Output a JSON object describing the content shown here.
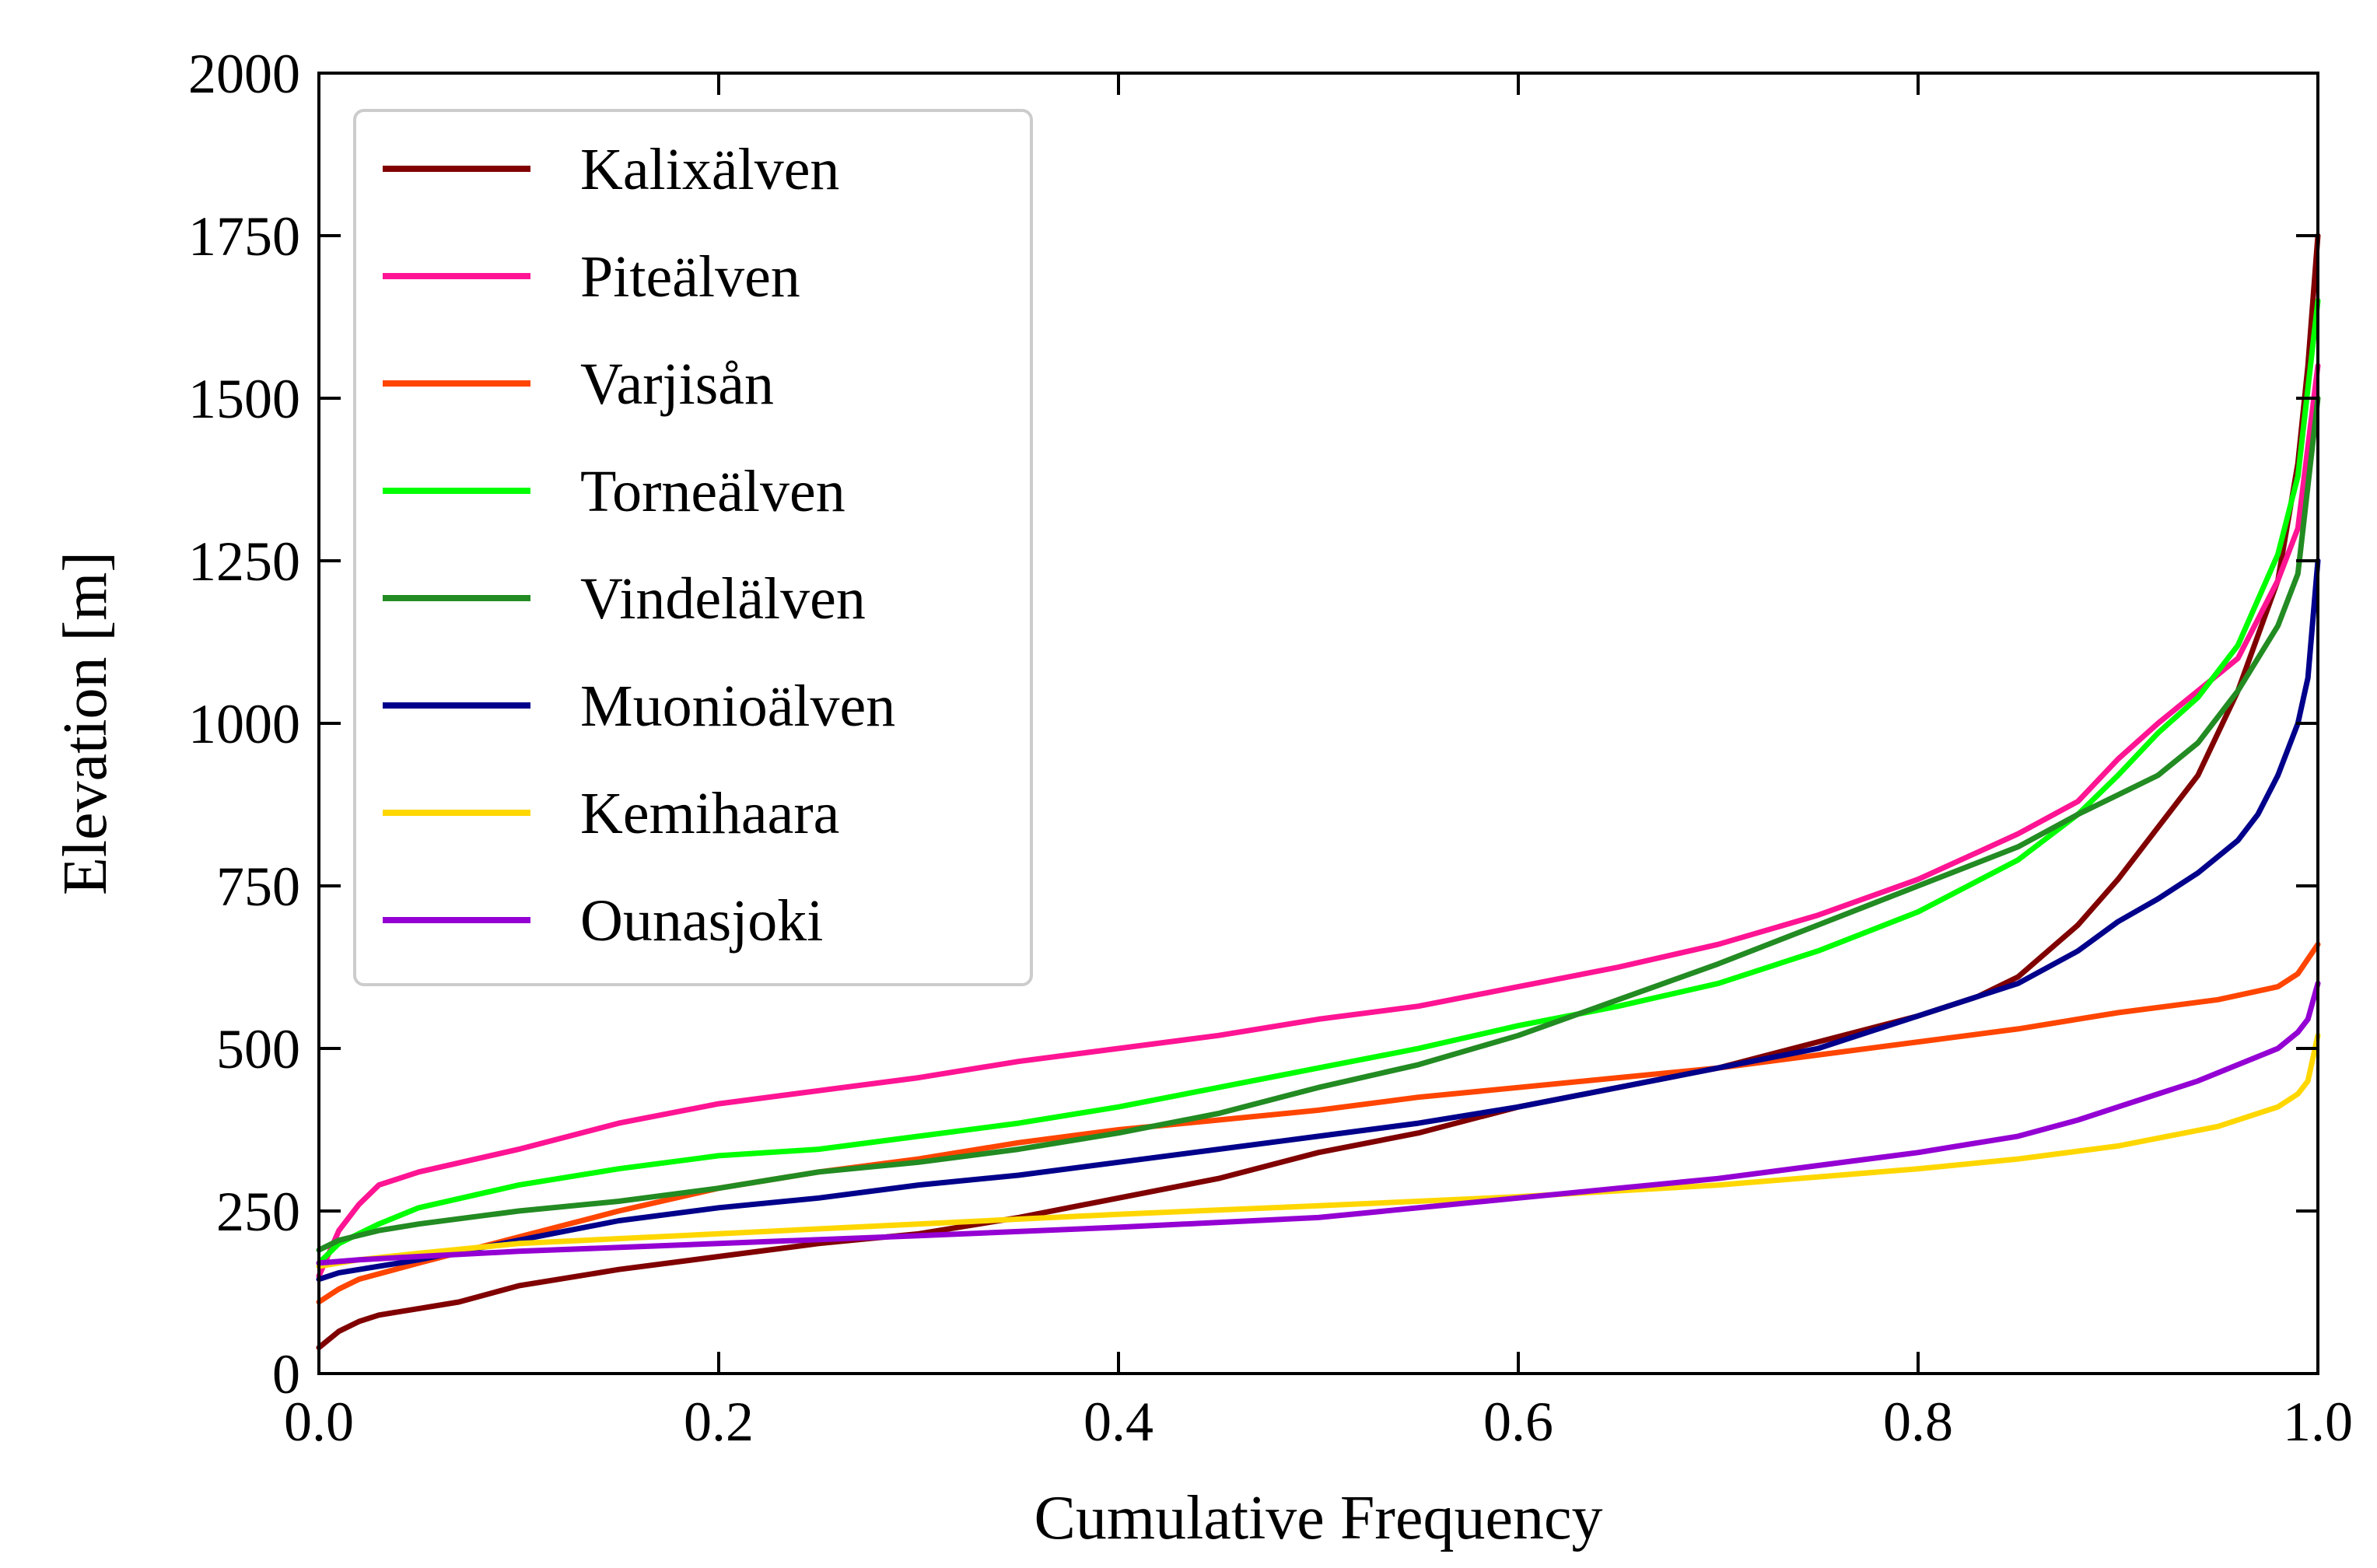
{
  "chart_data": {
    "type": "line",
    "title": "",
    "xlabel": "Cumulative Frequency",
    "ylabel": "Elevation [m]",
    "xlim": [
      0.0,
      1.0
    ],
    "ylim": [
      0,
      2000
    ],
    "grid": false,
    "legend_position": "top-left",
    "x_ticks": [
      0.0,
      0.2,
      0.4,
      0.6,
      0.8,
      1.0
    ],
    "x_tick_labels": [
      "0.0",
      "0.2",
      "0.4",
      "0.6",
      "0.8",
      "1.0"
    ],
    "y_ticks": [
      0,
      250,
      500,
      750,
      1000,
      1250,
      1500,
      1750,
      2000
    ],
    "y_tick_labels": [
      "0",
      "250",
      "500",
      "750",
      "1000",
      "1250",
      "1500",
      "1750",
      "2000"
    ],
    "series": [
      {
        "name": "Kalixälven",
        "color": "#800000",
        "points": [
          [
            0,
            40
          ],
          [
            0.01,
            65
          ],
          [
            0.02,
            80
          ],
          [
            0.03,
            90
          ],
          [
            0.05,
            100
          ],
          [
            0.07,
            110
          ],
          [
            0.1,
            135
          ],
          [
            0.15,
            160
          ],
          [
            0.2,
            180
          ],
          [
            0.25,
            200
          ],
          [
            0.3,
            215
          ],
          [
            0.35,
            240
          ],
          [
            0.4,
            270
          ],
          [
            0.45,
            300
          ],
          [
            0.5,
            340
          ],
          [
            0.55,
            370
          ],
          [
            0.6,
            410
          ],
          [
            0.65,
            440
          ],
          [
            0.7,
            470
          ],
          [
            0.75,
            510
          ],
          [
            0.8,
            550
          ],
          [
            0.83,
            580
          ],
          [
            0.85,
            610
          ],
          [
            0.88,
            690
          ],
          [
            0.9,
            760
          ],
          [
            0.92,
            840
          ],
          [
            0.94,
            920
          ],
          [
            0.96,
            1050
          ],
          [
            0.98,
            1220
          ],
          [
            0.99,
            1400
          ],
          [
            0.995,
            1550
          ],
          [
            1.0,
            1750
          ]
        ]
      },
      {
        "name": "Piteälven",
        "color": "#ff1493",
        "points": [
          [
            0,
            150
          ],
          [
            0.01,
            220
          ],
          [
            0.02,
            260
          ],
          [
            0.03,
            290
          ],
          [
            0.05,
            310
          ],
          [
            0.1,
            345
          ],
          [
            0.15,
            385
          ],
          [
            0.2,
            415
          ],
          [
            0.25,
            435
          ],
          [
            0.3,
            455
          ],
          [
            0.35,
            480
          ],
          [
            0.4,
            500
          ],
          [
            0.45,
            520
          ],
          [
            0.5,
            545
          ],
          [
            0.55,
            565
          ],
          [
            0.6,
            595
          ],
          [
            0.65,
            625
          ],
          [
            0.7,
            660
          ],
          [
            0.75,
            705
          ],
          [
            0.8,
            760
          ],
          [
            0.85,
            830
          ],
          [
            0.88,
            880
          ],
          [
            0.9,
            945
          ],
          [
            0.92,
            1000
          ],
          [
            0.94,
            1050
          ],
          [
            0.96,
            1100
          ],
          [
            0.98,
            1220
          ],
          [
            0.99,
            1300
          ],
          [
            1.0,
            1550
          ]
        ]
      },
      {
        "name": "Varjisån",
        "color": "#ff4500",
        "points": [
          [
            0,
            110
          ],
          [
            0.01,
            130
          ],
          [
            0.02,
            145
          ],
          [
            0.05,
            170
          ],
          [
            0.1,
            210
          ],
          [
            0.15,
            250
          ],
          [
            0.2,
            285
          ],
          [
            0.25,
            310
          ],
          [
            0.3,
            330
          ],
          [
            0.35,
            355
          ],
          [
            0.4,
            375
          ],
          [
            0.45,
            390
          ],
          [
            0.5,
            405
          ],
          [
            0.55,
            425
          ],
          [
            0.6,
            440
          ],
          [
            0.65,
            455
          ],
          [
            0.7,
            470
          ],
          [
            0.75,
            490
          ],
          [
            0.8,
            510
          ],
          [
            0.85,
            530
          ],
          [
            0.9,
            555
          ],
          [
            0.95,
            575
          ],
          [
            0.98,
            595
          ],
          [
            0.99,
            615
          ],
          [
            1.0,
            660
          ]
        ]
      },
      {
        "name": "Torneälven",
        "color": "#00ff00",
        "points": [
          [
            0,
            170
          ],
          [
            0.01,
            200
          ],
          [
            0.03,
            230
          ],
          [
            0.05,
            255
          ],
          [
            0.1,
            290
          ],
          [
            0.15,
            315
          ],
          [
            0.2,
            335
          ],
          [
            0.25,
            345
          ],
          [
            0.3,
            365
          ],
          [
            0.35,
            385
          ],
          [
            0.4,
            410
          ],
          [
            0.45,
            440
          ],
          [
            0.5,
            470
          ],
          [
            0.55,
            500
          ],
          [
            0.6,
            535
          ],
          [
            0.65,
            565
          ],
          [
            0.7,
            600
          ],
          [
            0.75,
            650
          ],
          [
            0.8,
            710
          ],
          [
            0.85,
            790
          ],
          [
            0.88,
            860
          ],
          [
            0.9,
            920
          ],
          [
            0.92,
            985
          ],
          [
            0.94,
            1040
          ],
          [
            0.96,
            1120
          ],
          [
            0.98,
            1260
          ],
          [
            0.99,
            1380
          ],
          [
            1.0,
            1650
          ]
        ]
      },
      {
        "name": "Vindelälven",
        "color": "#228b22",
        "points": [
          [
            0,
            190
          ],
          [
            0.01,
            205
          ],
          [
            0.03,
            220
          ],
          [
            0.05,
            230
          ],
          [
            0.1,
            250
          ],
          [
            0.15,
            265
          ],
          [
            0.2,
            285
          ],
          [
            0.25,
            310
          ],
          [
            0.3,
            325
          ],
          [
            0.35,
            345
          ],
          [
            0.4,
            370
          ],
          [
            0.45,
            400
          ],
          [
            0.5,
            440
          ],
          [
            0.55,
            475
          ],
          [
            0.6,
            520
          ],
          [
            0.65,
            575
          ],
          [
            0.7,
            630
          ],
          [
            0.75,
            690
          ],
          [
            0.8,
            750
          ],
          [
            0.85,
            810
          ],
          [
            0.88,
            860
          ],
          [
            0.9,
            890
          ],
          [
            0.92,
            920
          ],
          [
            0.94,
            970
          ],
          [
            0.96,
            1050
          ],
          [
            0.98,
            1150
          ],
          [
            0.99,
            1230
          ],
          [
            1.0,
            1500
          ]
        ]
      },
      {
        "name": "Muonioälven",
        "color": "#00008b",
        "points": [
          [
            0,
            145
          ],
          [
            0.01,
            155
          ],
          [
            0.03,
            165
          ],
          [
            0.05,
            175
          ],
          [
            0.1,
            205
          ],
          [
            0.15,
            235
          ],
          [
            0.2,
            255
          ],
          [
            0.25,
            270
          ],
          [
            0.3,
            290
          ],
          [
            0.35,
            305
          ],
          [
            0.4,
            325
          ],
          [
            0.45,
            345
          ],
          [
            0.5,
            365
          ],
          [
            0.55,
            385
          ],
          [
            0.6,
            410
          ],
          [
            0.65,
            440
          ],
          [
            0.7,
            470
          ],
          [
            0.75,
            500
          ],
          [
            0.8,
            550
          ],
          [
            0.85,
            600
          ],
          [
            0.88,
            650
          ],
          [
            0.9,
            695
          ],
          [
            0.92,
            730
          ],
          [
            0.94,
            770
          ],
          [
            0.96,
            820
          ],
          [
            0.97,
            860
          ],
          [
            0.98,
            920
          ],
          [
            0.99,
            1000
          ],
          [
            0.995,
            1070
          ],
          [
            1.0,
            1250
          ]
        ]
      },
      {
        "name": "Kemihaara",
        "color": "#ffd700",
        "points": [
          [
            0,
            165
          ],
          [
            0.02,
            175
          ],
          [
            0.05,
            185
          ],
          [
            0.1,
            200
          ],
          [
            0.2,
            215
          ],
          [
            0.3,
            230
          ],
          [
            0.4,
            245
          ],
          [
            0.5,
            258
          ],
          [
            0.6,
            272
          ],
          [
            0.7,
            290
          ],
          [
            0.8,
            315
          ],
          [
            0.85,
            330
          ],
          [
            0.9,
            350
          ],
          [
            0.95,
            380
          ],
          [
            0.98,
            410
          ],
          [
            0.99,
            430
          ],
          [
            0.995,
            450
          ],
          [
            1.0,
            520
          ]
        ]
      },
      {
        "name": "Ounasjoki",
        "color": "#9400d3",
        "points": [
          [
            0,
            170
          ],
          [
            0.02,
            175
          ],
          [
            0.05,
            180
          ],
          [
            0.1,
            188
          ],
          [
            0.2,
            200
          ],
          [
            0.3,
            212
          ],
          [
            0.4,
            225
          ],
          [
            0.5,
            240
          ],
          [
            0.6,
            270
          ],
          [
            0.65,
            285
          ],
          [
            0.7,
            300
          ],
          [
            0.75,
            320
          ],
          [
            0.8,
            340
          ],
          [
            0.85,
            365
          ],
          [
            0.88,
            390
          ],
          [
            0.9,
            410
          ],
          [
            0.92,
            430
          ],
          [
            0.94,
            450
          ],
          [
            0.96,
            475
          ],
          [
            0.98,
            500
          ],
          [
            0.99,
            525
          ],
          [
            0.995,
            545
          ],
          [
            1.0,
            600
          ]
        ]
      }
    ]
  }
}
